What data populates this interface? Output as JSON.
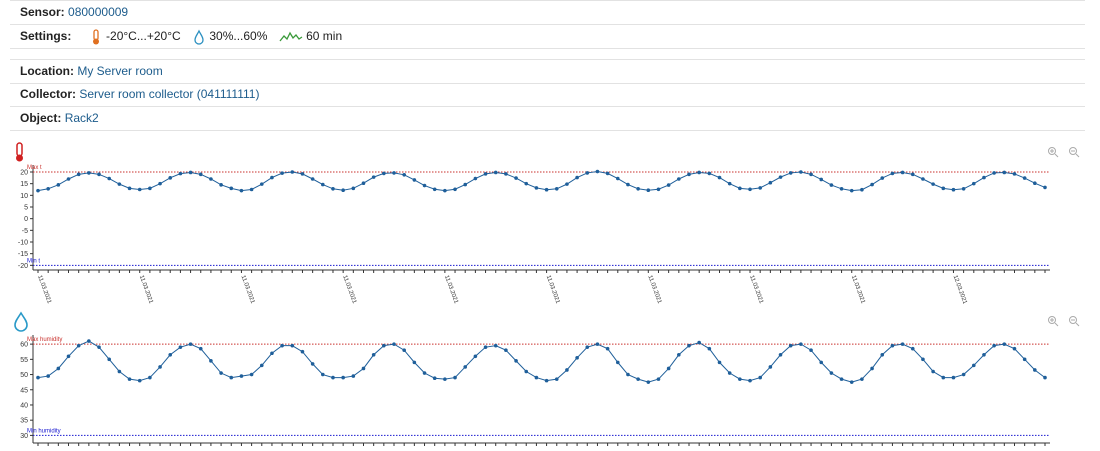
{
  "sensor": {
    "label": "Sensor:",
    "value": "080000009"
  },
  "settings": {
    "label": "Settings:",
    "temperature": "-20°C...+20°C",
    "humidity": "30%...60%",
    "interval": "60 min"
  },
  "location": {
    "label": "Location:",
    "value": "My Server room"
  },
  "collector": {
    "label": "Collector:",
    "value": "Server room collector (041111111)"
  },
  "object": {
    "label": "Object:",
    "value": "Rack2"
  },
  "chart_data": [
    {
      "type": "line",
      "color": "#1f5f9a",
      "categories": [
        "11.03.2021",
        null,
        null,
        null,
        null,
        null,
        null,
        null,
        null,
        null,
        "11.03.2021",
        null,
        null,
        null,
        null,
        null,
        null,
        null,
        null,
        null,
        "11.03.2021",
        null,
        null,
        null,
        null,
        null,
        null,
        null,
        null,
        null,
        "11.03.2021",
        null,
        null,
        null,
        null,
        null,
        null,
        null,
        null,
        null,
        "11.03.2021",
        null,
        null,
        null,
        null,
        null,
        null,
        null,
        null,
        null,
        "11.03.2021",
        null,
        null,
        null,
        null,
        null,
        null,
        null,
        null,
        null,
        "11.03.2021",
        null,
        null,
        null,
        null,
        null,
        null,
        null,
        null,
        null,
        "11.03.2021",
        null,
        null,
        null,
        null,
        null,
        null,
        null,
        null,
        null,
        "11.03.2021",
        null,
        null,
        null,
        null,
        null,
        null,
        null,
        null,
        null,
        "12.03.2021",
        null,
        null,
        null,
        null,
        null,
        null,
        null,
        null,
        null
      ],
      "values": [
        12,
        12.8,
        14.5,
        17,
        19,
        19.6,
        19,
        17.2,
        14.8,
        13,
        12.5,
        13,
        15,
        17.5,
        19.3,
        19.8,
        19,
        17,
        14.5,
        13,
        12,
        12.5,
        14.8,
        17.6,
        19.5,
        20,
        19.2,
        17,
        14.6,
        12.8,
        12.2,
        13,
        15.2,
        17.8,
        19.4,
        19.6,
        18.8,
        16.6,
        14.2,
        12.6,
        12,
        12.6,
        14.6,
        17.2,
        19.2,
        19.8,
        19.2,
        17.4,
        15,
        13.2,
        12.4,
        12.8,
        14.8,
        17.6,
        19.6,
        20.2,
        19.4,
        17.2,
        14.6,
        12.8,
        12.2,
        12.6,
        14.4,
        17,
        19,
        19.8,
        19.4,
        17.6,
        15,
        13,
        12.6,
        13.2,
        15.4,
        17.8,
        19.6,
        20,
        19,
        16.8,
        14.4,
        12.8,
        12,
        12.4,
        14.6,
        17.4,
        19.4,
        19.8,
        19,
        17,
        14.8,
        13,
        12.4,
        12.8,
        15,
        17.6,
        19.6,
        19.8,
        19.2,
        17.4,
        15.2,
        13.4
      ],
      "ylim": [
        -22,
        23
      ],
      "yticks": [
        -20,
        -15,
        -10,
        -5,
        0,
        5,
        10,
        15,
        20
      ],
      "reference_lines": [
        {
          "label": "Max t",
          "value": 20,
          "color": "#c9302c"
        },
        {
          "label": "Min t",
          "value": -20,
          "color": "#1a1ad0"
        }
      ]
    },
    {
      "type": "line",
      "color": "#1f5f9a",
      "values": [
        49,
        49.5,
        52,
        56,
        59.5,
        61,
        59,
        55,
        51,
        48.5,
        48,
        49,
        52.5,
        56.5,
        59,
        60,
        58.5,
        54.5,
        50.5,
        49,
        49.5,
        50,
        53,
        57,
        59.5,
        59.5,
        57.5,
        53.5,
        50,
        49,
        49,
        49.5,
        52,
        56.5,
        59.5,
        60,
        58,
        54,
        50.5,
        48.8,
        48.5,
        49,
        52.5,
        56,
        59,
        59.5,
        58,
        54.5,
        51,
        49,
        48,
        48.5,
        51.5,
        55.5,
        59,
        60,
        58.5,
        54,
        50,
        48.5,
        47.5,
        48.5,
        52,
        56.5,
        59.5,
        60.5,
        58.5,
        54,
        50.5,
        48.5,
        48,
        49,
        52.5,
        56.5,
        59.5,
        60,
        58,
        54,
        50.5,
        48.5,
        47.5,
        48.5,
        52,
        56.5,
        59.5,
        60,
        58.5,
        55,
        51,
        49,
        49,
        50,
        53,
        56.5,
        59.5,
        60,
        58.5,
        55,
        51.5,
        49
      ],
      "ylim": [
        27.5,
        63
      ],
      "yticks": [
        30,
        35,
        40,
        45,
        50,
        55,
        60
      ],
      "reference_lines": [
        {
          "label": "Max humidity",
          "value": 60,
          "color": "#c9302c"
        },
        {
          "label": "Min humidity",
          "value": 30,
          "color": "#1a1ad0"
        }
      ]
    }
  ]
}
